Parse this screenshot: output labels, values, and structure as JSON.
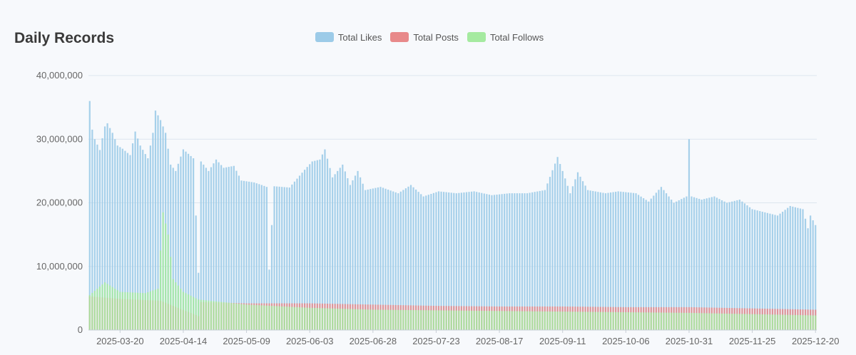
{
  "title": "Daily Records",
  "chart_data": {
    "type": "bar",
    "title": "Daily Records",
    "xlabel": "",
    "ylabel": "",
    "ylim": [
      0,
      40000000
    ],
    "y_ticks": [
      0,
      10000000,
      20000000,
      30000000,
      40000000
    ],
    "y_tick_labels": [
      "0",
      "10,000,000",
      "20,000,000",
      "30,000,000",
      "40,000,000"
    ],
    "x_range": [
      "2025-03-08",
      "2025-12-20"
    ],
    "x_tick_labels": [
      "2025-03-20",
      "2025-04-14",
      "2025-05-09",
      "2025-06-03",
      "2025-06-28",
      "2025-07-23",
      "2025-08-17",
      "2025-09-11",
      "2025-10-06",
      "2025-10-31",
      "2025-11-25",
      "2025-12-20"
    ],
    "grid": "horizontal",
    "legend_position": "top-center",
    "overlap": true,
    "series": [
      {
        "name": "Total Likes",
        "color": "#9ccbe8",
        "anchors": [
          [
            "2025-03-08",
            36000000
          ],
          [
            "2025-03-09",
            31500000
          ],
          [
            "2025-03-10",
            30000000
          ],
          [
            "2025-03-12",
            28300000
          ],
          [
            "2025-03-14",
            32000000
          ],
          [
            "2025-03-15",
            32500000
          ],
          [
            "2025-03-17",
            31000000
          ],
          [
            "2025-03-19",
            29000000
          ],
          [
            "2025-03-21",
            28500000
          ],
          [
            "2025-03-24",
            27500000
          ],
          [
            "2025-03-26",
            31200000
          ],
          [
            "2025-03-28",
            29000000
          ],
          [
            "2025-03-31",
            27000000
          ],
          [
            "2025-04-02",
            31000000
          ],
          [
            "2025-04-03",
            34500000
          ],
          [
            "2025-04-05",
            33000000
          ],
          [
            "2025-04-07",
            31000000
          ],
          [
            "2025-04-09",
            26000000
          ],
          [
            "2025-04-11",
            25000000
          ],
          [
            "2025-04-14",
            28400000
          ],
          [
            "2025-04-18",
            27000000
          ],
          [
            "2025-04-20",
            9000000
          ],
          [
            "2025-04-21",
            26500000
          ],
          [
            "2025-04-24",
            25000000
          ],
          [
            "2025-04-27",
            26800000
          ],
          [
            "2025-04-30",
            25500000
          ],
          [
            "2025-05-04",
            25800000
          ],
          [
            "2025-05-07",
            23500000
          ],
          [
            "2025-05-12",
            23200000
          ],
          [
            "2025-05-15",
            22800000
          ],
          [
            "2025-05-17",
            22500000
          ],
          [
            "2025-05-18",
            9500000
          ],
          [
            "2025-05-19",
            16500000
          ],
          [
            "2025-05-20",
            22600000
          ],
          [
            "2025-05-26",
            22400000
          ],
          [
            "2025-06-01",
            25200000
          ],
          [
            "2025-06-04",
            26500000
          ],
          [
            "2025-06-07",
            26800000
          ],
          [
            "2025-06-09",
            28400000
          ],
          [
            "2025-06-12",
            24000000
          ],
          [
            "2025-06-16",
            26000000
          ],
          [
            "2025-06-19",
            22800000
          ],
          [
            "2025-06-22",
            25000000
          ],
          [
            "2025-06-25",
            22000000
          ],
          [
            "2025-07-01",
            22500000
          ],
          [
            "2025-07-08",
            21500000
          ],
          [
            "2025-07-13",
            22800000
          ],
          [
            "2025-07-18",
            21000000
          ],
          [
            "2025-07-24",
            21800000
          ],
          [
            "2025-07-31",
            21500000
          ],
          [
            "2025-08-07",
            21800000
          ],
          [
            "2025-08-14",
            21200000
          ],
          [
            "2025-08-21",
            21500000
          ],
          [
            "2025-08-28",
            21500000
          ],
          [
            "2025-09-04",
            22000000
          ],
          [
            "2025-09-09",
            27200000
          ],
          [
            "2025-09-11",
            25000000
          ],
          [
            "2025-09-14",
            21500000
          ],
          [
            "2025-09-17",
            24800000
          ],
          [
            "2025-09-21",
            22000000
          ],
          [
            "2025-09-28",
            21500000
          ],
          [
            "2025-10-03",
            21800000
          ],
          [
            "2025-10-10",
            21500000
          ],
          [
            "2025-10-15",
            20200000
          ],
          [
            "2025-10-20",
            22500000
          ],
          [
            "2025-10-25",
            20000000
          ],
          [
            "2025-10-30",
            21000000
          ],
          [
            "2025-10-31",
            30000000
          ],
          [
            "2025-11-01",
            21000000
          ],
          [
            "2025-11-05",
            20500000
          ],
          [
            "2025-11-10",
            21000000
          ],
          [
            "2025-11-15",
            20000000
          ],
          [
            "2025-11-20",
            20500000
          ],
          [
            "2025-11-25",
            19000000
          ],
          [
            "2025-11-30",
            18500000
          ],
          [
            "2025-12-05",
            18000000
          ],
          [
            "2025-12-10",
            19500000
          ],
          [
            "2025-12-15",
            19000000
          ],
          [
            "2025-12-17",
            16000000
          ],
          [
            "2025-12-18",
            18000000
          ],
          [
            "2025-12-20",
            16500000
          ]
        ]
      },
      {
        "name": "Total Posts",
        "color": "#e8898a",
        "anchors": [
          [
            "2025-03-08",
            5300000
          ],
          [
            "2025-03-20",
            4900000
          ],
          [
            "2025-04-05",
            4600000
          ],
          [
            "2025-04-20",
            2200000
          ],
          [
            "2025-04-21",
            4400000
          ],
          [
            "2025-05-09",
            4200000
          ],
          [
            "2025-06-03",
            4200000
          ],
          [
            "2025-06-28",
            4000000
          ],
          [
            "2025-07-23",
            3800000
          ],
          [
            "2025-08-17",
            3700000
          ],
          [
            "2025-09-11",
            3700000
          ],
          [
            "2025-10-06",
            3600000
          ],
          [
            "2025-10-31",
            3600000
          ],
          [
            "2025-11-25",
            3400000
          ],
          [
            "2025-12-20",
            3200000
          ]
        ]
      },
      {
        "name": "Total Follows",
        "color": "#a5eaa0",
        "anchors": [
          [
            "2025-03-08",
            5500000
          ],
          [
            "2025-03-14",
            7500000
          ],
          [
            "2025-03-20",
            6000000
          ],
          [
            "2025-03-30",
            5800000
          ],
          [
            "2025-04-04",
            6500000
          ],
          [
            "2025-04-06",
            18500000
          ],
          [
            "2025-04-08",
            15000000
          ],
          [
            "2025-04-10",
            8000000
          ],
          [
            "2025-04-14",
            6000000
          ],
          [
            "2025-04-20",
            4800000
          ],
          [
            "2025-05-09",
            4000000
          ],
          [
            "2025-06-03",
            3500000
          ],
          [
            "2025-06-28",
            3200000
          ],
          [
            "2025-07-23",
            3100000
          ],
          [
            "2025-08-17",
            3000000
          ],
          [
            "2025-09-11",
            2900000
          ],
          [
            "2025-10-06",
            2800000
          ],
          [
            "2025-10-31",
            2700000
          ],
          [
            "2025-11-25",
            2500000
          ],
          [
            "2025-12-20",
            2300000
          ]
        ]
      }
    ]
  }
}
